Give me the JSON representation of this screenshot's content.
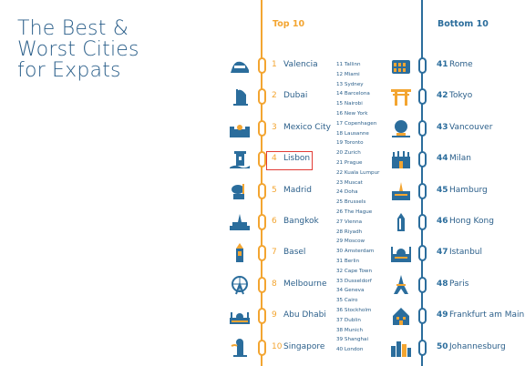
{
  "title_lines": [
    "The Best &",
    "Worst Cities",
    "for Expats"
  ],
  "headers": {
    "top": "Top 10",
    "bottom": "Bottom 10"
  },
  "colors": {
    "orange": "#f3a531",
    "blue": "#2b6d9c",
    "text": "#2b5f8a",
    "highlight": "#e23b35"
  },
  "top10": [
    {
      "rank": "1",
      "city": "Valencia",
      "icon": "valencia-arts-icon"
    },
    {
      "rank": "2",
      "city": "Dubai",
      "icon": "burj-al-arab-icon"
    },
    {
      "rank": "3",
      "city": "Mexico City",
      "icon": "cathedral-icon"
    },
    {
      "rank": "4",
      "city": "Lisbon",
      "icon": "belem-tower-icon"
    },
    {
      "rank": "5",
      "city": "Madrid",
      "icon": "bear-statue-icon"
    },
    {
      "rank": "6",
      "city": "Bangkok",
      "icon": "temple-icon"
    },
    {
      "rank": "7",
      "city": "Basel",
      "icon": "basel-tower-icon"
    },
    {
      "rank": "8",
      "city": "Melbourne",
      "icon": "ferris-wheel-icon"
    },
    {
      "rank": "9",
      "city": "Abu Dhabi",
      "icon": "mosque-icon"
    },
    {
      "rank": "10",
      "city": "Singapore",
      "icon": "merlion-icon"
    }
  ],
  "middle": [
    "11 Tallinn",
    "12 Miami",
    "13 Sydney",
    "14 Barcelona",
    "15 Nairobi",
    "16 New York",
    "17 Copenhagen",
    "18 Lausanne",
    "19 Toronto",
    "20 Zurich",
    "21 Prague",
    "22 Kuala Lumpur",
    "23 Muscat",
    "24 Doha",
    "25 Brussels",
    "26 The Hague",
    "27 Vienna",
    "28 Riyadh",
    "29 Moscow",
    "30 Amsterdam",
    "31 Berlin",
    "32 Cape Town",
    "33 Dusseldorf",
    "34 Geneva",
    "35 Cairo",
    "36 Stockholm",
    "37 Dublin",
    "38 Munich",
    "39 Shanghai",
    "40 London"
  ],
  "bottom10": [
    {
      "rank": "41",
      "city": "Rome",
      "icon": "colosseum-icon"
    },
    {
      "rank": "42",
      "city": "Tokyo",
      "icon": "torii-gate-icon"
    },
    {
      "rank": "43",
      "city": "Vancouver",
      "icon": "science-dome-icon"
    },
    {
      "rank": "44",
      "city": "Milan",
      "icon": "milan-cathedral-icon"
    },
    {
      "rank": "45",
      "city": "Hamburg",
      "icon": "hamburg-church-icon"
    },
    {
      "rank": "46",
      "city": "Hong Kong",
      "icon": "skyscraper-icon"
    },
    {
      "rank": "47",
      "city": "Istanbul",
      "icon": "blue-mosque-icon"
    },
    {
      "rank": "48",
      "city": "Paris",
      "icon": "eiffel-tower-icon"
    },
    {
      "rank": "49",
      "city": "Frankfurt am Main",
      "icon": "frankfurt-house-icon"
    },
    {
      "rank": "50",
      "city": "Johannesburg",
      "icon": "city-skyline-icon"
    }
  ]
}
